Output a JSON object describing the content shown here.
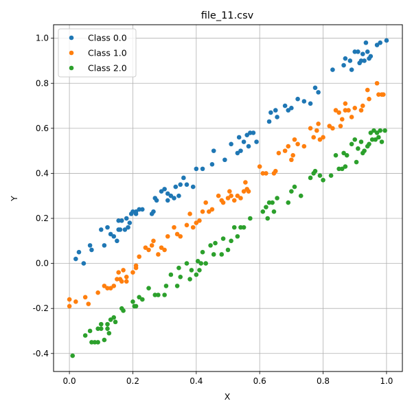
{
  "chart_data": {
    "type": "scatter",
    "title": "file_11.csv",
    "xlabel": "X",
    "ylabel": "Y",
    "xlim": [
      -0.05,
      1.05
    ],
    "ylim": [
      -0.48,
      1.06
    ],
    "xticks": [
      0.0,
      0.2,
      0.4,
      0.6,
      0.8,
      1.0
    ],
    "yticks": [
      -0.4,
      -0.2,
      0.0,
      0.2,
      0.4,
      0.6,
      0.8,
      1.0
    ],
    "grid": true,
    "legend_position": "top-left",
    "series": [
      {
        "name": "Class 0.0",
        "color": "#1f77b4",
        "points": [
          [
            0.02,
            0.02
          ],
          [
            0.03,
            0.05
          ],
          [
            0.045,
            0.0
          ],
          [
            0.065,
            0.08
          ],
          [
            0.07,
            0.06
          ],
          [
            0.1,
            0.15
          ],
          [
            0.11,
            0.08
          ],
          [
            0.12,
            0.16
          ],
          [
            0.13,
            0.13
          ],
          [
            0.14,
            0.12
          ],
          [
            0.15,
            0.1
          ],
          [
            0.155,
            0.15
          ],
          [
            0.155,
            0.19
          ],
          [
            0.16,
            0.15
          ],
          [
            0.165,
            0.19
          ],
          [
            0.175,
            0.15
          ],
          [
            0.18,
            0.2
          ],
          [
            0.185,
            0.16
          ],
          [
            0.19,
            0.18
          ],
          [
            0.195,
            0.22
          ],
          [
            0.2,
            0.23
          ],
          [
            0.21,
            0.22
          ],
          [
            0.21,
            0.23
          ],
          [
            0.22,
            0.24
          ],
          [
            0.23,
            0.24
          ],
          [
            0.26,
            0.22
          ],
          [
            0.265,
            0.23
          ],
          [
            0.27,
            0.29
          ],
          [
            0.275,
            0.28
          ],
          [
            0.29,
            0.32
          ],
          [
            0.3,
            0.33
          ],
          [
            0.31,
            0.28
          ],
          [
            0.31,
            0.31
          ],
          [
            0.32,
            0.3
          ],
          [
            0.33,
            0.29
          ],
          [
            0.335,
            0.34
          ],
          [
            0.345,
            0.3
          ],
          [
            0.35,
            0.35
          ],
          [
            0.36,
            0.38
          ],
          [
            0.37,
            0.35
          ],
          [
            0.39,
            0.34
          ],
          [
            0.4,
            0.42
          ],
          [
            0.42,
            0.42
          ],
          [
            0.45,
            0.44
          ],
          [
            0.455,
            0.5
          ],
          [
            0.49,
            0.46
          ],
          [
            0.51,
            0.53
          ],
          [
            0.53,
            0.49
          ],
          [
            0.535,
            0.56
          ],
          [
            0.54,
            0.5
          ],
          [
            0.55,
            0.54
          ],
          [
            0.56,
            0.57
          ],
          [
            0.565,
            0.52
          ],
          [
            0.57,
            0.58
          ],
          [
            0.58,
            0.58
          ],
          [
            0.59,
            0.54
          ],
          [
            0.63,
            0.63
          ],
          [
            0.635,
            0.67
          ],
          [
            0.65,
            0.68
          ],
          [
            0.655,
            0.65
          ],
          [
            0.68,
            0.7
          ],
          [
            0.69,
            0.68
          ],
          [
            0.7,
            0.69
          ],
          [
            0.72,
            0.73
          ],
          [
            0.74,
            0.72
          ],
          [
            0.76,
            0.71
          ],
          [
            0.775,
            0.78
          ],
          [
            0.785,
            0.76
          ],
          [
            0.83,
            0.86
          ],
          [
            0.865,
            0.88
          ],
          [
            0.87,
            0.91
          ],
          [
            0.885,
            0.9
          ],
          [
            0.89,
            0.86
          ],
          [
            0.9,
            0.94
          ],
          [
            0.91,
            0.94
          ],
          [
            0.915,
            0.89
          ],
          [
            0.92,
            0.9
          ],
          [
            0.925,
            0.93
          ],
          [
            0.93,
            0.9
          ],
          [
            0.935,
            0.98
          ],
          [
            0.94,
            0.94
          ],
          [
            0.945,
            0.91
          ],
          [
            0.95,
            0.92
          ],
          [
            0.97,
            0.97
          ],
          [
            0.98,
            0.98
          ],
          [
            1.0,
            0.99
          ]
        ]
      },
      {
        "name": "Class 1.0",
        "color": "#ff7f0e",
        "points": [
          [
            0.0,
            -0.16
          ],
          [
            0.0,
            -0.19
          ],
          [
            0.02,
            -0.17
          ],
          [
            0.05,
            -0.15
          ],
          [
            0.06,
            -0.18
          ],
          [
            0.09,
            -0.13
          ],
          [
            0.11,
            -0.1
          ],
          [
            0.12,
            -0.11
          ],
          [
            0.13,
            -0.11
          ],
          [
            0.14,
            -0.1
          ],
          [
            0.15,
            -0.07
          ],
          [
            0.155,
            -0.04
          ],
          [
            0.16,
            -0.07
          ],
          [
            0.165,
            -0.08
          ],
          [
            0.17,
            -0.03
          ],
          [
            0.18,
            -0.06
          ],
          [
            0.18,
            -0.08
          ],
          [
            0.2,
            -0.04
          ],
          [
            0.21,
            -0.01
          ],
          [
            0.21,
            -0.02
          ],
          [
            0.22,
            0.03
          ],
          [
            0.24,
            0.07
          ],
          [
            0.25,
            0.06
          ],
          [
            0.26,
            0.08
          ],
          [
            0.265,
            0.1
          ],
          [
            0.28,
            0.04
          ],
          [
            0.29,
            0.07
          ],
          [
            0.3,
            0.06
          ],
          [
            0.31,
            0.12
          ],
          [
            0.33,
            0.16
          ],
          [
            0.34,
            0.13
          ],
          [
            0.35,
            0.12
          ],
          [
            0.37,
            0.17
          ],
          [
            0.38,
            0.22
          ],
          [
            0.39,
            0.16
          ],
          [
            0.4,
            0.18
          ],
          [
            0.41,
            0.19
          ],
          [
            0.42,
            0.23
          ],
          [
            0.43,
            0.27
          ],
          [
            0.44,
            0.23
          ],
          [
            0.45,
            0.24
          ],
          [
            0.47,
            0.3
          ],
          [
            0.48,
            0.28
          ],
          [
            0.485,
            0.27
          ],
          [
            0.5,
            0.29
          ],
          [
            0.505,
            0.32
          ],
          [
            0.51,
            0.3
          ],
          [
            0.52,
            0.28
          ],
          [
            0.53,
            0.3
          ],
          [
            0.54,
            0.29
          ],
          [
            0.55,
            0.32
          ],
          [
            0.555,
            0.36
          ],
          [
            0.56,
            0.33
          ],
          [
            0.565,
            0.32
          ],
          [
            0.6,
            0.43
          ],
          [
            0.61,
            0.4
          ],
          [
            0.62,
            0.4
          ],
          [
            0.645,
            0.4
          ],
          [
            0.65,
            0.41
          ],
          [
            0.66,
            0.49
          ],
          [
            0.68,
            0.5
          ],
          [
            0.69,
            0.52
          ],
          [
            0.7,
            0.46
          ],
          [
            0.705,
            0.48
          ],
          [
            0.71,
            0.55
          ],
          [
            0.72,
            0.53
          ],
          [
            0.74,
            0.52
          ],
          [
            0.76,
            0.6
          ],
          [
            0.77,
            0.56
          ],
          [
            0.78,
            0.59
          ],
          [
            0.785,
            0.62
          ],
          [
            0.79,
            0.55
          ],
          [
            0.8,
            0.56
          ],
          [
            0.82,
            0.61
          ],
          [
            0.83,
            0.6
          ],
          [
            0.84,
            0.68
          ],
          [
            0.85,
            0.67
          ],
          [
            0.855,
            0.61
          ],
          [
            0.86,
            0.64
          ],
          [
            0.87,
            0.68
          ],
          [
            0.87,
            0.71
          ],
          [
            0.88,
            0.68
          ],
          [
            0.89,
            0.65
          ],
          [
            0.9,
            0.69
          ],
          [
            0.92,
            0.68
          ],
          [
            0.925,
            0.7
          ],
          [
            0.94,
            0.77
          ],
          [
            0.945,
            0.73
          ],
          [
            0.97,
            0.8
          ],
          [
            0.975,
            0.75
          ],
          [
            0.985,
            0.75
          ],
          [
            0.99,
            0.75
          ]
        ]
      },
      {
        "name": "Class 2.0",
        "color": "#2ca02c",
        "points": [
          [
            0.01,
            -0.41
          ],
          [
            0.05,
            -0.32
          ],
          [
            0.065,
            -0.3
          ],
          [
            0.07,
            -0.35
          ],
          [
            0.08,
            -0.35
          ],
          [
            0.09,
            -0.29
          ],
          [
            0.09,
            -0.35
          ],
          [
            0.1,
            -0.27
          ],
          [
            0.1,
            -0.29
          ],
          [
            0.11,
            -0.34
          ],
          [
            0.12,
            -0.29
          ],
          [
            0.12,
            -0.27
          ],
          [
            0.125,
            -0.31
          ],
          [
            0.13,
            -0.25
          ],
          [
            0.14,
            -0.24
          ],
          [
            0.145,
            -0.26
          ],
          [
            0.165,
            -0.2
          ],
          [
            0.17,
            -0.21
          ],
          [
            0.2,
            -0.17
          ],
          [
            0.205,
            -0.19
          ],
          [
            0.21,
            -0.19
          ],
          [
            0.22,
            -0.15
          ],
          [
            0.23,
            -0.16
          ],
          [
            0.25,
            -0.11
          ],
          [
            0.27,
            -0.14
          ],
          [
            0.28,
            -0.14
          ],
          [
            0.3,
            -0.14
          ],
          [
            0.305,
            -0.1
          ],
          [
            0.32,
            -0.05
          ],
          [
            0.34,
            -0.1
          ],
          [
            0.345,
            -0.02
          ],
          [
            0.35,
            -0.06
          ],
          [
            0.37,
            0.0
          ],
          [
            0.38,
            -0.07
          ],
          [
            0.385,
            -0.03
          ],
          [
            0.4,
            -0.05
          ],
          [
            0.405,
            0.01
          ],
          [
            0.41,
            -0.03
          ],
          [
            0.415,
            0.0
          ],
          [
            0.42,
            0.05
          ],
          [
            0.43,
            0.0
          ],
          [
            0.445,
            0.08
          ],
          [
            0.455,
            0.04
          ],
          [
            0.46,
            0.09
          ],
          [
            0.48,
            0.04
          ],
          [
            0.485,
            0.11
          ],
          [
            0.5,
            0.06
          ],
          [
            0.51,
            0.1
          ],
          [
            0.52,
            0.16
          ],
          [
            0.53,
            0.12
          ],
          [
            0.54,
            0.16
          ],
          [
            0.55,
            0.16
          ],
          [
            0.57,
            0.2
          ],
          [
            0.61,
            0.23
          ],
          [
            0.62,
            0.25
          ],
          [
            0.625,
            0.2
          ],
          [
            0.63,
            0.27
          ],
          [
            0.64,
            0.27
          ],
          [
            0.645,
            0.23
          ],
          [
            0.655,
            0.29
          ],
          [
            0.69,
            0.27
          ],
          [
            0.7,
            0.32
          ],
          [
            0.71,
            0.34
          ],
          [
            0.73,
            0.3
          ],
          [
            0.76,
            0.38
          ],
          [
            0.77,
            0.4
          ],
          [
            0.775,
            0.41
          ],
          [
            0.79,
            0.39
          ],
          [
            0.8,
            0.37
          ],
          [
            0.825,
            0.39
          ],
          [
            0.84,
            0.48
          ],
          [
            0.85,
            0.42
          ],
          [
            0.86,
            0.42
          ],
          [
            0.865,
            0.49
          ],
          [
            0.87,
            0.43
          ],
          [
            0.875,
            0.48
          ],
          [
            0.89,
            0.53
          ],
          [
            0.9,
            0.55
          ],
          [
            0.905,
            0.45
          ],
          [
            0.91,
            0.51
          ],
          [
            0.92,
            0.54
          ],
          [
            0.925,
            0.49
          ],
          [
            0.93,
            0.5
          ],
          [
            0.94,
            0.52
          ],
          [
            0.945,
            0.53
          ],
          [
            0.95,
            0.58
          ],
          [
            0.955,
            0.55
          ],
          [
            0.96,
            0.59
          ],
          [
            0.965,
            0.55
          ],
          [
            0.97,
            0.58
          ],
          [
            0.975,
            0.56
          ],
          [
            0.98,
            0.59
          ],
          [
            0.985,
            0.54
          ],
          [
            0.995,
            0.59
          ]
        ]
      }
    ]
  }
}
